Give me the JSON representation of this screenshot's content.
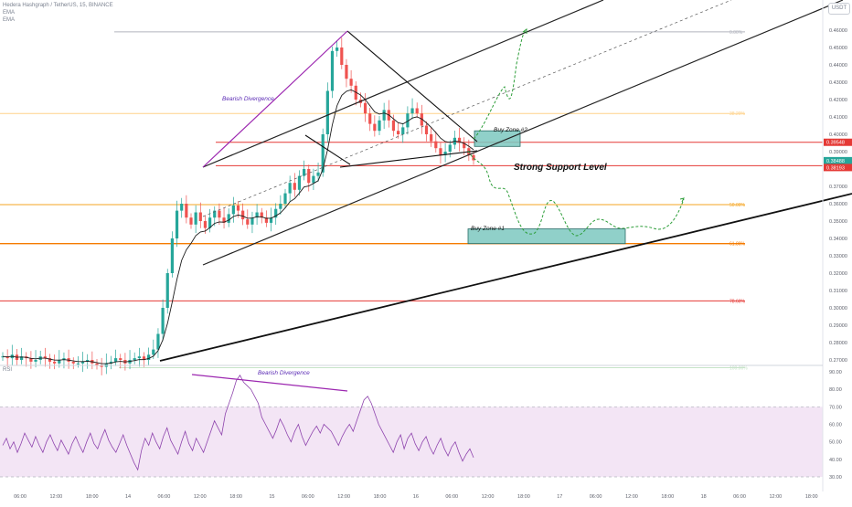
{
  "header": {
    "symbol_line": "Hedera Hashgraph / TetherUS, 15, BINANCE",
    "ma1": "EMA",
    "ma2": "EMA",
    "currency_button": "USDT",
    "rsi_label": "RSI"
  },
  "chart_data": [
    {
      "type": "line",
      "pane": "price",
      "y_ticks": [
        "0.46000",
        "0.45000",
        "0.44000",
        "0.43000",
        "0.42000",
        "0.41000",
        "0.40000",
        "0.39000",
        "0.38000",
        "0.37000",
        "0.36000",
        "0.35000",
        "0.34000",
        "0.33000",
        "0.32000",
        "0.31000",
        "0.30000",
        "0.29000",
        "0.28000",
        "0.27000"
      ],
      "ylim": [
        0.263,
        0.471
      ],
      "x_ticks": [
        "06:00",
        "12:00",
        "18:00",
        "14",
        "06:00",
        "12:00",
        "18:00",
        "15",
        "06:00",
        "12:00",
        "18:00",
        "16",
        "06:00",
        "12:00",
        "18:00",
        "17",
        "06:00",
        "12:00",
        "18:00",
        "18",
        "06:00",
        "12:00",
        "18:00"
      ],
      "fib_levels": [
        {
          "label": "0.00%",
          "price": 0.459,
          "color": "#b2b5be"
        },
        {
          "label": "38.20%",
          "price": 0.412,
          "color": "#ffd28a"
        },
        {
          "label": "50.00%",
          "price": 0.3595,
          "color": "#f5a623"
        },
        {
          "label": "61.80%",
          "price": 0.337,
          "color": "#f57c00"
        },
        {
          "label": "78.60%",
          "price": 0.304,
          "color": "#e53935"
        },
        {
          "label": "100.00%",
          "price": 0.2655,
          "color": "#c6e3c8"
        }
      ],
      "horizontal_lines": [
        {
          "price": 0.3954,
          "color": "#e53935"
        },
        {
          "price": 0.3819,
          "color": "#e53935"
        }
      ],
      "price_labels": [
        {
          "text": "0.39548",
          "color": "#e53935"
        },
        {
          "text": "0.38488",
          "color": "#26a69a"
        },
        {
          "text": "11:26",
          "color": "#26a69a"
        },
        {
          "text": "0.38193",
          "color": "#e53935"
        }
      ],
      "annotations": [
        "Bearish Divergence",
        "Strong Support Level",
        "Buy Zone #1",
        "Buy Zone #2"
      ],
      "buy_zones": [
        {
          "label": "Buy Zone #1",
          "x_from": "16 12:30",
          "x_to": "17 16:00",
          "price_top": 0.3455,
          "price_bottom": 0.337
        },
        {
          "label": "Buy Zone #2",
          "x_from": "16 12:00",
          "x_to": "16 15:00",
          "price_top": 0.402,
          "price_bottom": 0.393
        }
      ],
      "close_series": [
        0.272,
        0.271,
        0.273,
        0.27,
        0.272,
        0.271,
        0.269,
        0.27,
        0.272,
        0.271,
        0.269,
        0.268,
        0.27,
        0.271,
        0.269,
        0.268,
        0.268,
        0.269,
        0.27,
        0.268,
        0.267,
        0.266,
        0.268,
        0.269,
        0.271,
        0.27,
        0.268,
        0.27,
        0.271,
        0.272,
        0.27,
        0.273,
        0.276,
        0.285,
        0.3,
        0.32,
        0.34,
        0.356,
        0.36,
        0.352,
        0.348,
        0.355,
        0.35,
        0.346,
        0.352,
        0.356,
        0.352,
        0.349,
        0.354,
        0.359,
        0.356,
        0.351,
        0.348,
        0.352,
        0.355,
        0.352,
        0.349,
        0.352,
        0.357,
        0.36,
        0.366,
        0.372,
        0.368,
        0.376,
        0.38,
        0.372,
        0.376,
        0.378,
        0.4,
        0.425,
        0.448,
        0.45,
        0.44,
        0.432,
        0.428,
        0.42,
        0.418,
        0.412,
        0.406,
        0.402,
        0.408,
        0.414,
        0.408,
        0.402,
        0.4,
        0.404,
        0.412,
        0.415,
        0.412,
        0.405,
        0.4,
        0.396,
        0.392,
        0.388,
        0.39,
        0.394,
        0.398,
        0.395,
        0.392,
        0.388,
        0.385
      ]
    },
    {
      "type": "line",
      "pane": "rsi",
      "y_ticks": [
        "90.00",
        "80.00",
        "70.00",
        "60.00",
        "50.00",
        "40.00",
        "30.00"
      ],
      "ylim": [
        30,
        90
      ],
      "band": [
        30,
        70
      ],
      "annotations": [
        "Bearish Divergence"
      ],
      "values": [
        48,
        52,
        46,
        50,
        44,
        49,
        55,
        51,
        47,
        53,
        48,
        44,
        50,
        54,
        49,
        45,
        51,
        47,
        43,
        49,
        53,
        48,
        44,
        50,
        55,
        49,
        46,
        52,
        57,
        51,
        47,
        44,
        49,
        54,
        48,
        43,
        38,
        34,
        45,
        52,
        48,
        55,
        50,
        46,
        53,
        58,
        51,
        47,
        43,
        50,
        56,
        49,
        45,
        52,
        48,
        44,
        50,
        56,
        62,
        58,
        54,
        66,
        72,
        78,
        85,
        88,
        84,
        82,
        80,
        76,
        72,
        64,
        60,
        56,
        52,
        57,
        63,
        59,
        54,
        50,
        56,
        60,
        53,
        48,
        52,
        56,
        59,
        55,
        60,
        58,
        56,
        52,
        48,
        53,
        57,
        60,
        56,
        62,
        68,
        74,
        76,
        72,
        66,
        60,
        56,
        52,
        48,
        44,
        50,
        54,
        46,
        52,
        55,
        49,
        45,
        50,
        53,
        47,
        43,
        48,
        52,
        46,
        42,
        47,
        50,
        44,
        39,
        43,
        46,
        41
      ]
    }
  ],
  "theme": {
    "up_color": "#26a69a",
    "down_color": "#ef5350",
    "rsi_color": "#8e44ad",
    "rsi_band": "#f3e5f5",
    "divergence_color": "#9c27b0",
    "projection_color": "#2e9e3a",
    "zone_fill": "#7cc8c0"
  }
}
